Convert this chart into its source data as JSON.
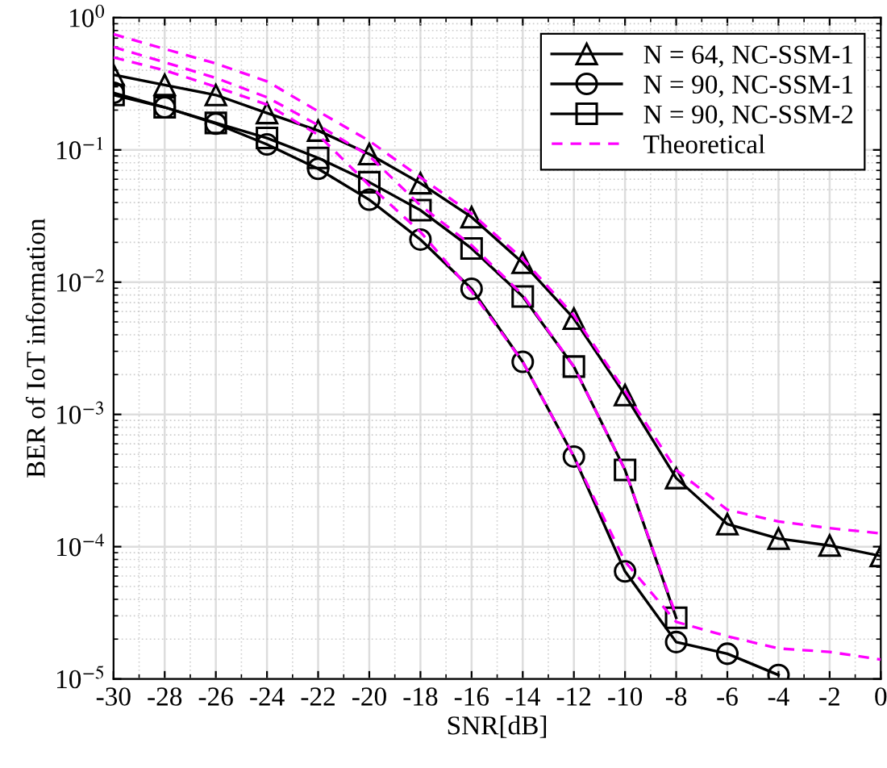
{
  "chart_data": {
    "type": "line",
    "xlabel": "SNR[dB]",
    "ylabel": "BER of IoT information",
    "log": "y",
    "xlim": [
      -30,
      0
    ],
    "xticks": [
      -30,
      -28,
      -26,
      -24,
      -22,
      -20,
      -18,
      -16,
      -14,
      -12,
      -10,
      -8,
      -6,
      -4,
      -2,
      0
    ],
    "ylim": [
      1e-05,
      1
    ],
    "yticks": [
      {
        "value": 1e-05,
        "label": "10$^{−5}$"
      },
      {
        "value": 0.0001,
        "label": "10$^{−4}$"
      },
      {
        "value": 0.001,
        "label": "10$^{−3}$"
      },
      {
        "value": 0.01,
        "label": "10$^{−2}$"
      },
      {
        "value": 0.1,
        "label": "10$^{−1}$"
      },
      {
        "value": 1,
        "label": "10$^{0}$"
      }
    ],
    "grid": true,
    "legend": "top right",
    "series": [
      {
        "name": "N = 64, NC-SSM-1",
        "color": "#000000",
        "marker": "triangle",
        "line_style": "solid",
        "x": [
          -30,
          -28,
          -26,
          -24,
          -22,
          -20,
          -18,
          -16,
          -14,
          -12,
          -10,
          -8,
          -6,
          -4,
          -2,
          0
        ],
        "values": [
          0.37,
          0.31,
          0.26,
          0.19,
          0.14,
          0.093,
          0.056,
          0.031,
          0.014,
          0.0053,
          0.0014,
          0.00033,
          0.000148,
          0.000115,
          0.000102,
          8.5e-05
        ]
      },
      {
        "name": "N = 90, NC-SSM-1",
        "color": "#000000",
        "marker": "circle",
        "line_style": "solid",
        "x": [
          -30,
          -28,
          -26,
          -24,
          -22,
          -20,
          -18,
          -16,
          -14,
          -12,
          -10,
          -8,
          -6,
          -4
        ],
        "values": [
          0.27,
          0.21,
          0.158,
          0.11,
          0.072,
          0.042,
          0.021,
          0.0089,
          0.0025,
          0.00048,
          6.5e-05,
          1.9e-05,
          1.55e-05,
          1.07e-05
        ]
      },
      {
        "name": "N = 90, NC-SSM-2",
        "color": "#000000",
        "marker": "square",
        "line_style": "solid",
        "x": [
          -30,
          -28,
          -26,
          -24,
          -22,
          -20,
          -18,
          -16,
          -14,
          -12,
          -10,
          -8
        ],
        "values": [
          0.26,
          0.21,
          0.16,
          0.123,
          0.087,
          0.057,
          0.035,
          0.018,
          0.0078,
          0.0023,
          0.00038,
          2.9e-05
        ]
      },
      {
        "name": "Theoretical",
        "color": "#ff00ff",
        "marker": "none",
        "line_style": "dashed",
        "x": [
          -30,
          -28,
          -26,
          -24,
          -22,
          -20,
          -18,
          -16,
          -14,
          -12,
          -10,
          -8,
          -6,
          -4,
          -2,
          0
        ],
        "values": [
          0.75,
          0.58,
          0.45,
          0.33,
          0.196,
          0.117,
          0.062,
          0.033,
          0.015,
          0.0056,
          0.0015,
          0.00038,
          0.00019,
          0.000155,
          0.000138,
          0.000126
        ]
      },
      {
        "color": "#ff00ff",
        "marker": "none",
        "line_style": "dashed",
        "x": [
          -30,
          -28,
          -26,
          -24,
          -22,
          -20,
          -18,
          -16,
          -14,
          -12,
          -10,
          -8,
          -6,
          -4,
          -2,
          0
        ],
        "values": [
          0.5,
          0.4,
          0.3,
          0.22,
          0.13,
          0.054,
          0.024,
          0.0085,
          0.0025,
          0.00048,
          7.7e-05,
          2.7e-05,
          2.1e-05,
          1.7e-05,
          1.6e-05,
          1.4e-05
        ]
      },
      {
        "color": "#ff00ff",
        "marker": "none",
        "line_style": "dashed",
        "x": [
          -30,
          -28,
          -26,
          -24,
          -22,
          -20,
          -18,
          -16,
          -14,
          -12,
          -10,
          -8
        ],
        "values": [
          0.6,
          0.46,
          0.35,
          0.25,
          0.154,
          0.09,
          0.038,
          0.019,
          0.008,
          0.0023,
          0.00038,
          3e-05
        ]
      }
    ]
  }
}
